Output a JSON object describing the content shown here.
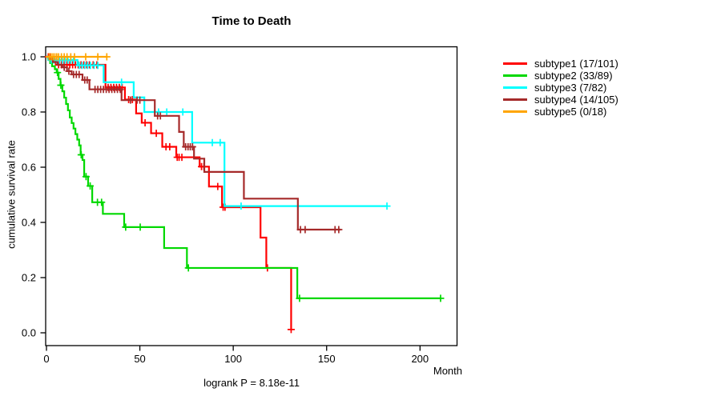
{
  "chart_data": {
    "type": "line",
    "subtype": "kaplan-meier-step",
    "title": "Time to Death",
    "xlabel": "Month",
    "ylabel": "cumulative survival rate",
    "footnote": "logrank P = 8.18e-11",
    "xlim": [
      0,
      220
    ],
    "ylim": [
      0,
      1
    ],
    "xticks": [
      0,
      50,
      100,
      150,
      200
    ],
    "yticks": [
      0.0,
      0.2,
      0.4,
      0.6,
      0.8,
      1.0
    ],
    "grid": false,
    "legend_position": "right",
    "series": [
      {
        "id": "subtype1",
        "name": "subtype1 (17/101)",
        "color": "#FF0000",
        "steps": [
          [
            0,
            1.0
          ],
          [
            2,
            0.99
          ],
          [
            5,
            0.971
          ],
          [
            31.6,
            0.889
          ],
          [
            42,
            0.845
          ],
          [
            48,
            0.795
          ],
          [
            51,
            0.761
          ],
          [
            56,
            0.723
          ],
          [
            62,
            0.674
          ],
          [
            69.5,
            0.636
          ],
          [
            82,
            0.602
          ],
          [
            87,
            0.53
          ],
          [
            94,
            0.455
          ],
          [
            114.6,
            0.345
          ],
          [
            117.7,
            0.235
          ],
          [
            131,
            0.012
          ]
        ],
        "end_month": 131,
        "censors": [
          [
            1,
            1.0
          ],
          [
            2.2,
            1.0
          ],
          [
            3,
            0.99
          ],
          [
            4,
            0.99
          ],
          [
            6.5,
            0.971
          ],
          [
            8,
            0.971
          ],
          [
            9.5,
            0.971
          ],
          [
            11,
            0.971
          ],
          [
            12.5,
            0.971
          ],
          [
            14,
            0.971
          ],
          [
            15.5,
            0.971
          ],
          [
            17,
            0.971
          ],
          [
            18.5,
            0.971
          ],
          [
            20,
            0.971
          ],
          [
            21.5,
            0.971
          ],
          [
            23,
            0.971
          ],
          [
            25,
            0.971
          ],
          [
            27,
            0.971
          ],
          [
            33,
            0.889
          ],
          [
            34.5,
            0.889
          ],
          [
            36,
            0.889
          ],
          [
            37.5,
            0.889
          ],
          [
            39,
            0.889
          ],
          [
            40.5,
            0.889
          ],
          [
            44,
            0.845
          ],
          [
            46,
            0.845
          ],
          [
            52.8,
            0.761
          ],
          [
            58.8,
            0.723
          ],
          [
            64,
            0.674
          ],
          [
            66,
            0.674
          ],
          [
            70,
            0.636
          ],
          [
            71,
            0.636
          ],
          [
            72.5,
            0.636
          ],
          [
            83,
            0.602
          ],
          [
            84.3,
            0.602
          ],
          [
            91.7,
            0.53
          ],
          [
            94.6,
            0.455
          ],
          [
            95.6,
            0.455
          ],
          [
            118.3,
            0.235
          ],
          [
            131,
            0.012
          ]
        ]
      },
      {
        "id": "subtype2",
        "name": "subtype2 (33/89)",
        "color": "#00D800",
        "steps": [
          [
            0,
            1.0
          ],
          [
            1,
            0.989
          ],
          [
            2,
            0.977
          ],
          [
            3,
            0.966
          ],
          [
            4.5,
            0.955
          ],
          [
            5.5,
            0.943
          ],
          [
            6.5,
            0.92
          ],
          [
            7.5,
            0.897
          ],
          [
            8.5,
            0.875
          ],
          [
            9.5,
            0.852
          ],
          [
            10.5,
            0.829
          ],
          [
            11.5,
            0.806
          ],
          [
            12.5,
            0.78
          ],
          [
            13.5,
            0.76
          ],
          [
            14.5,
            0.74
          ],
          [
            15.5,
            0.72
          ],
          [
            16.5,
            0.7
          ],
          [
            17.5,
            0.679
          ],
          [
            18.3,
            0.645
          ],
          [
            19.3,
            0.626
          ],
          [
            20.2,
            0.566
          ],
          [
            22.3,
            0.532
          ],
          [
            24.5,
            0.473
          ],
          [
            30.2,
            0.431
          ],
          [
            41.6,
            0.383
          ],
          [
            63,
            0.307
          ],
          [
            75.2,
            0.235
          ],
          [
            134.3,
            0.125
          ]
        ],
        "end_month": 211,
        "censors": [
          [
            5.9,
            0.943
          ],
          [
            7.7,
            0.897
          ],
          [
            18.6,
            0.645
          ],
          [
            21.2,
            0.566
          ],
          [
            23.4,
            0.532
          ],
          [
            27.3,
            0.473
          ],
          [
            29.5,
            0.473
          ],
          [
            42.4,
            0.383
          ],
          [
            50.2,
            0.383
          ],
          [
            76,
            0.235
          ],
          [
            135.5,
            0.125
          ],
          [
            211,
            0.125
          ]
        ]
      },
      {
        "id": "subtype3",
        "name": "subtype3 (7/82)",
        "color": "#00FFFF",
        "steps": [
          [
            0,
            1.0
          ],
          [
            1.2,
            0.988
          ],
          [
            16.6,
            0.969
          ],
          [
            30.6,
            0.908
          ],
          [
            46.7,
            0.853
          ],
          [
            52.4,
            0.8
          ],
          [
            78,
            0.689
          ],
          [
            95.3,
            0.459
          ]
        ],
        "end_month": 182.3,
        "censors": [
          [
            2.5,
            0.988
          ],
          [
            4,
            0.988
          ],
          [
            5.5,
            0.988
          ],
          [
            7,
            0.988
          ],
          [
            8.5,
            0.988
          ],
          [
            10,
            0.988
          ],
          [
            11.5,
            0.988
          ],
          [
            13,
            0.988
          ],
          [
            14.5,
            0.988
          ],
          [
            17.5,
            0.969
          ],
          [
            19,
            0.969
          ],
          [
            20.5,
            0.969
          ],
          [
            22,
            0.969
          ],
          [
            23.5,
            0.969
          ],
          [
            25.5,
            0.969
          ],
          [
            27.5,
            0.969
          ],
          [
            40.2,
            0.908
          ],
          [
            60,
            0.8
          ],
          [
            64.4,
            0.8
          ],
          [
            73,
            0.8
          ],
          [
            88.8,
            0.689
          ],
          [
            93,
            0.689
          ],
          [
            104.2,
            0.459
          ],
          [
            182.3,
            0.459
          ]
        ]
      },
      {
        "id": "subtype4",
        "name": "subtype4 (14/105)",
        "color": "#A52A2A",
        "steps": [
          [
            0,
            1.0
          ],
          [
            1.5,
            0.99
          ],
          [
            3.5,
            0.981
          ],
          [
            6,
            0.971
          ],
          [
            8.5,
            0.962
          ],
          [
            11,
            0.948
          ],
          [
            13.5,
            0.936
          ],
          [
            19.3,
            0.916
          ],
          [
            23,
            0.882
          ],
          [
            40.2,
            0.843
          ],
          [
            58,
            0.786
          ],
          [
            71,
            0.728
          ],
          [
            73.5,
            0.674
          ],
          [
            79,
            0.631
          ],
          [
            84.5,
            0.583
          ],
          [
            105.7,
            0.486
          ],
          [
            134.6,
            0.374
          ]
        ],
        "end_month": 157.5,
        "censors": [
          [
            9.5,
            0.962
          ],
          [
            12,
            0.948
          ],
          [
            14.5,
            0.936
          ],
          [
            16,
            0.936
          ],
          [
            17.5,
            0.936
          ],
          [
            20.5,
            0.916
          ],
          [
            21.8,
            0.916
          ],
          [
            26,
            0.882
          ],
          [
            27.5,
            0.882
          ],
          [
            29,
            0.882
          ],
          [
            30.5,
            0.882
          ],
          [
            32,
            0.882
          ],
          [
            33.5,
            0.882
          ],
          [
            35,
            0.882
          ],
          [
            36.5,
            0.882
          ],
          [
            38,
            0.882
          ],
          [
            39.5,
            0.882
          ],
          [
            45,
            0.843
          ],
          [
            48.5,
            0.843
          ],
          [
            50,
            0.843
          ],
          [
            59.5,
            0.786
          ],
          [
            61,
            0.786
          ],
          [
            74.5,
            0.674
          ],
          [
            75.8,
            0.674
          ],
          [
            77,
            0.674
          ],
          [
            78.2,
            0.674
          ],
          [
            136,
            0.374
          ],
          [
            138.5,
            0.374
          ],
          [
            154.5,
            0.374
          ],
          [
            156.5,
            0.374
          ]
        ]
      },
      {
        "id": "subtype5",
        "name": "subtype5 (0/18)",
        "color": "#FFA500",
        "steps": [
          [
            0,
            1.0
          ]
        ],
        "end_month": 32.3,
        "censors": [
          [
            1.5,
            1.0
          ],
          [
            2.5,
            1.0
          ],
          [
            3.5,
            1.0
          ],
          [
            4.5,
            1.0
          ],
          [
            5.5,
            1.0
          ],
          [
            6.5,
            1.0
          ],
          [
            8,
            1.0
          ],
          [
            9.5,
            1.0
          ],
          [
            11,
            1.0
          ],
          [
            13,
            1.0
          ],
          [
            15,
            1.0
          ],
          [
            21,
            1.0
          ],
          [
            27.5,
            1.0
          ],
          [
            32.3,
            1.0
          ]
        ]
      }
    ]
  }
}
